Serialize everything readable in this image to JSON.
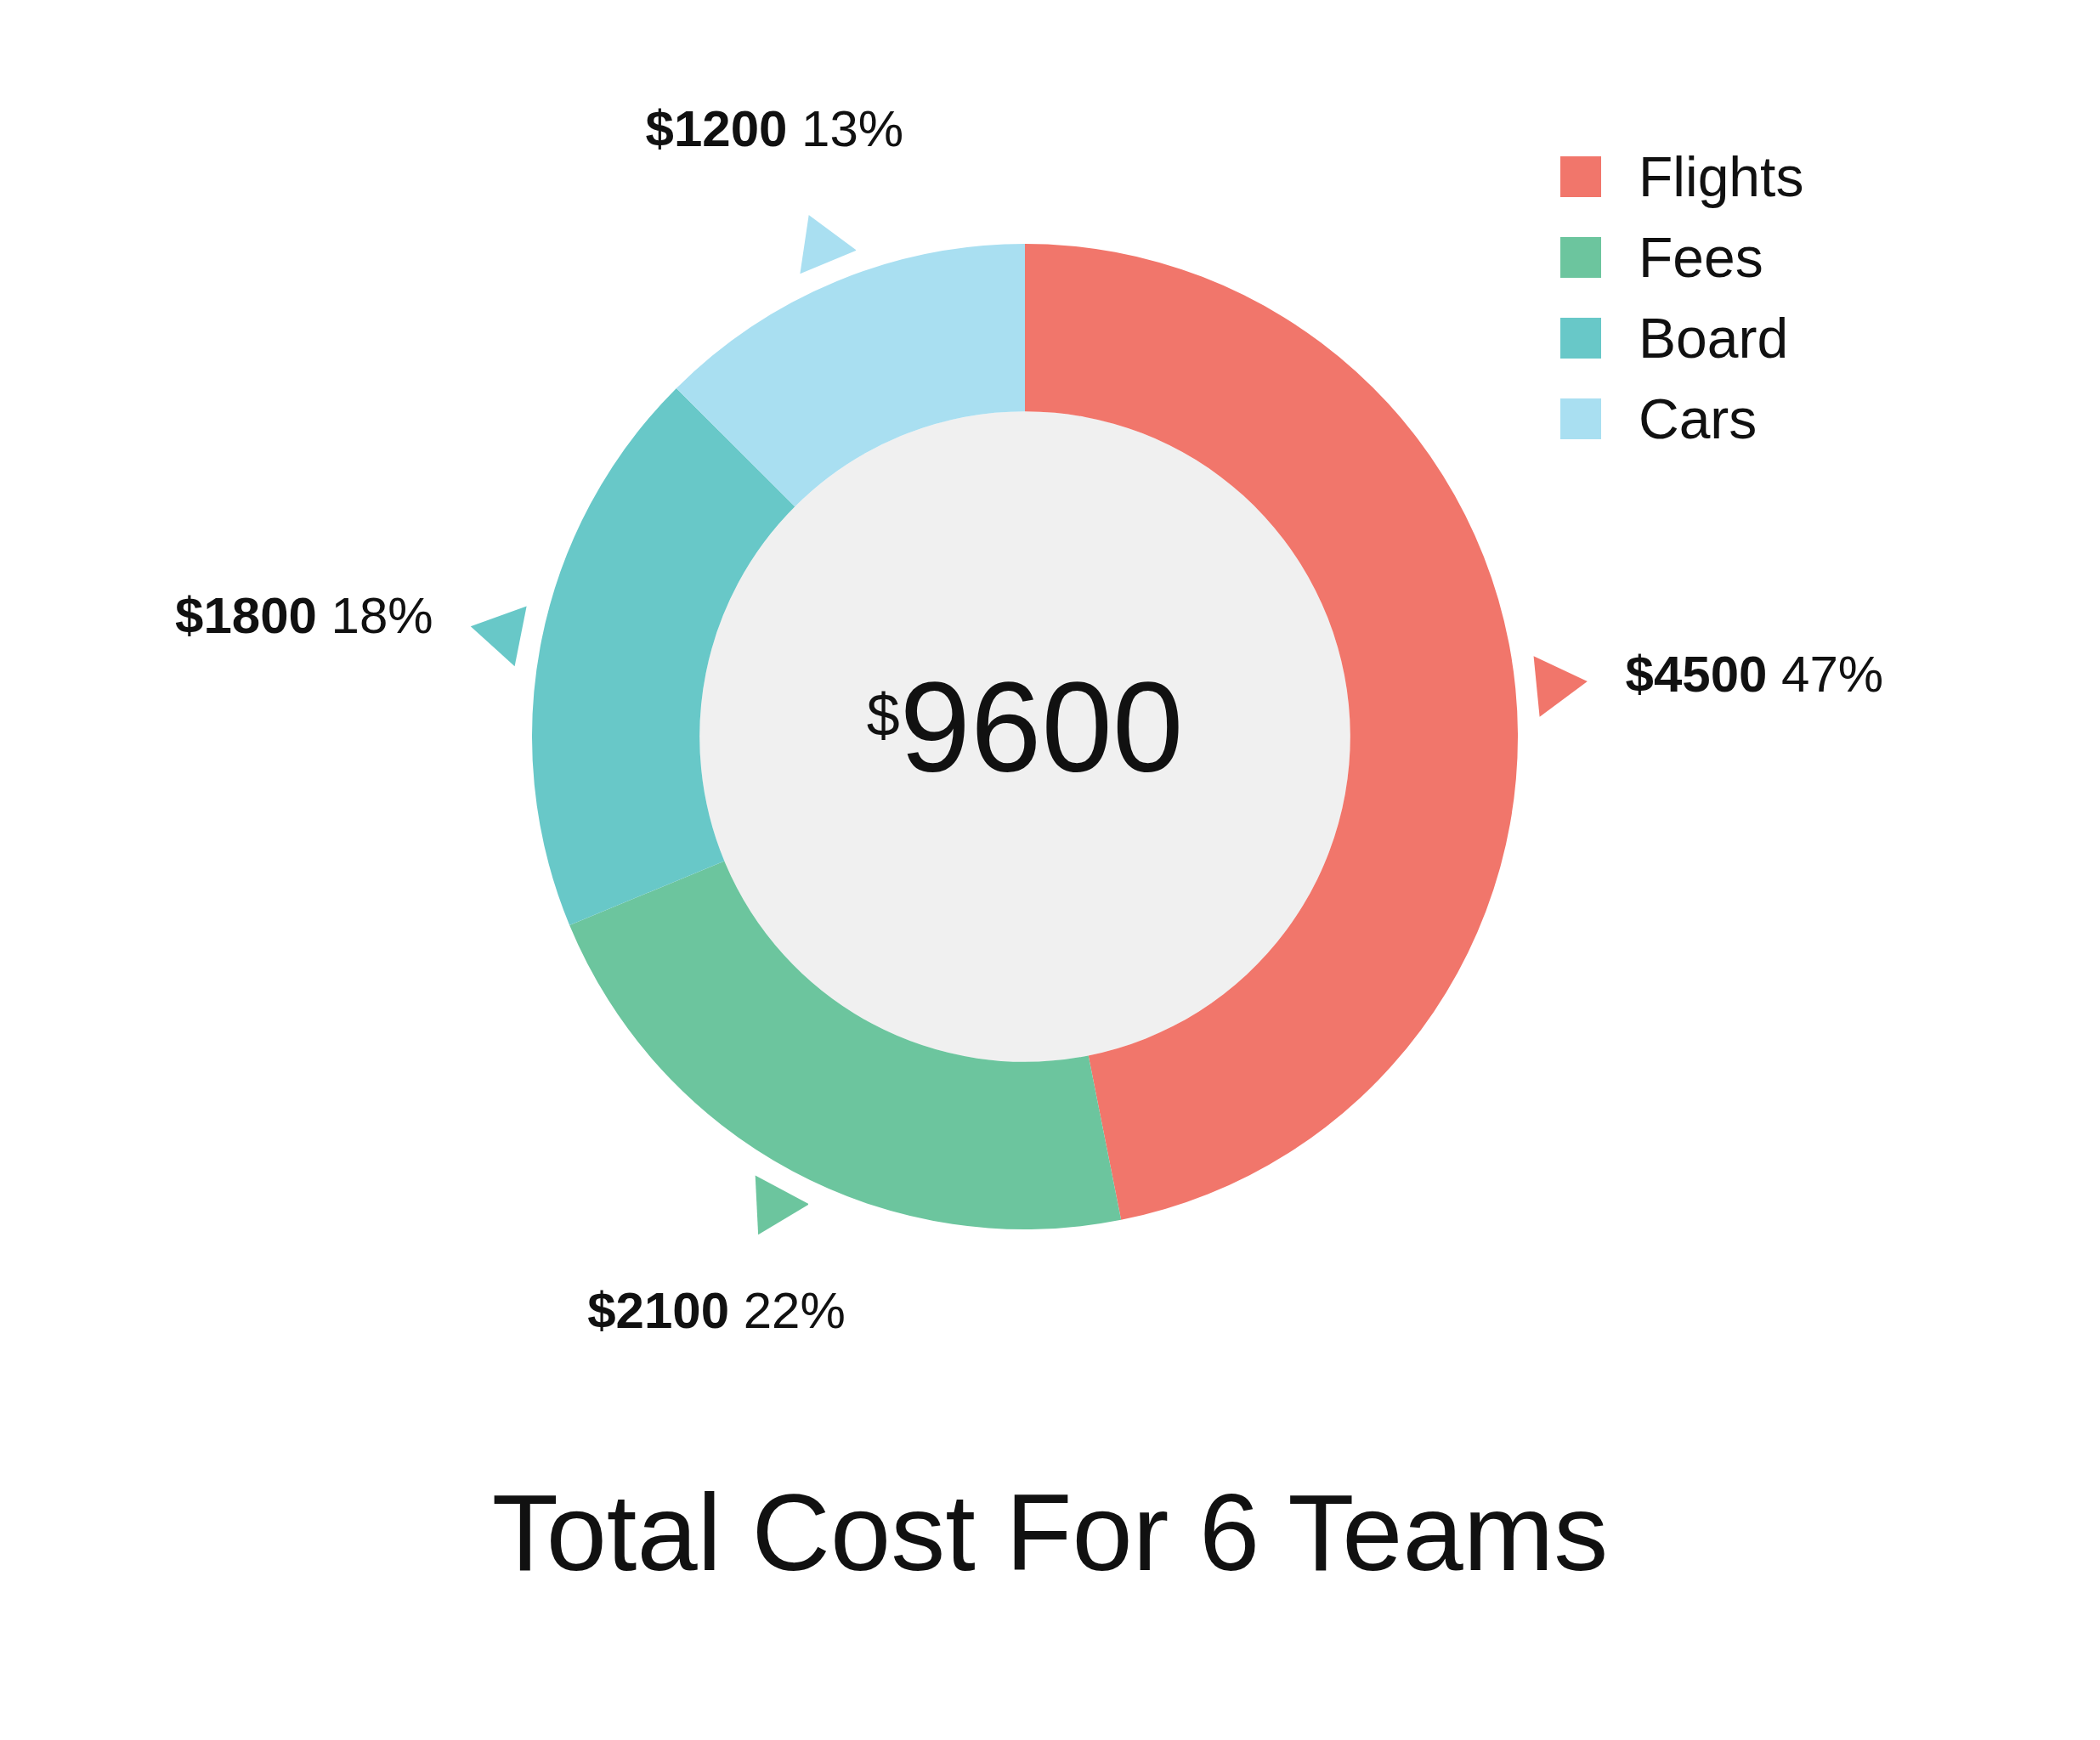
{
  "chart_data": {
    "type": "donut",
    "title": "Total Cost For 6 Teams",
    "categories": [
      "Flights",
      "Fees",
      "Board",
      "Cars"
    ],
    "values": [
      4500,
      2100,
      1800,
      1200
    ],
    "colors": [
      "#f1766b",
      "#6cc59e",
      "#68c8c8",
      "#a9dff1"
    ],
    "value_labels": [
      "$4500 47%",
      "$2100 22%",
      "$1800 18%",
      "$1200 13%"
    ],
    "annotations": [
      "$9600"
    ],
    "legend": "top right"
  }
}
